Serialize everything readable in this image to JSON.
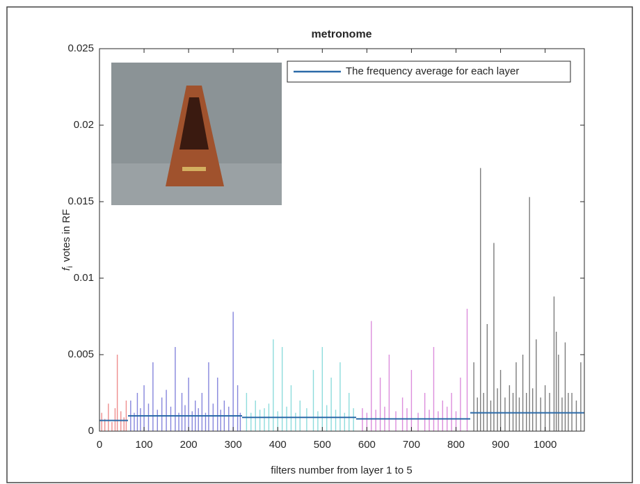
{
  "chart_data": {
    "type": "stem",
    "title": "metronome",
    "xlabel": "filters number from layer 1 to 5",
    "ylabel": {
      "symbol": "f",
      "subscript": "i",
      "text": "votes in RF"
    },
    "xlim": [
      0,
      1088
    ],
    "ylim": [
      0,
      0.025
    ],
    "xticks": [
      0,
      100,
      200,
      300,
      400,
      500,
      600,
      700,
      800,
      900,
      1000
    ],
    "yticks": [
      0,
      0.005,
      0.01,
      0.015,
      0.02,
      0.025
    ],
    "layers": [
      {
        "color": "#e03030",
        "start": 0,
        "end": 64,
        "x": [
          5,
          12,
          20,
          28,
          35,
          40,
          48,
          55,
          60
        ],
        "values": [
          0.0012,
          0.0008,
          0.0018,
          0.0006,
          0.0015,
          0.005,
          0.0013,
          0.0009,
          0.002
        ]
      },
      {
        "color": "#2020c0",
        "start": 64,
        "end": 320,
        "x": [
          70,
          78,
          85,
          92,
          100,
          110,
          120,
          130,
          140,
          150,
          160,
          170,
          178,
          185,
          192,
          200,
          208,
          215,
          222,
          230,
          238,
          245,
          255,
          265,
          272,
          280,
          290,
          300,
          310,
          316
        ],
        "values": [
          0.002,
          0.0012,
          0.0025,
          0.0015,
          0.003,
          0.0018,
          0.0045,
          0.0014,
          0.0022,
          0.0027,
          0.0016,
          0.0055,
          0.0012,
          0.0025,
          0.0017,
          0.0035,
          0.0013,
          0.002,
          0.0015,
          0.0025,
          0.0012,
          0.0045,
          0.0018,
          0.0035,
          0.0014,
          0.002,
          0.0016,
          0.0078,
          0.003,
          0.0012
        ]
      },
      {
        "color": "#30c0c0",
        "start": 320,
        "end": 576,
        "x": [
          330,
          340,
          350,
          360,
          370,
          380,
          390,
          400,
          410,
          420,
          430,
          440,
          450,
          465,
          480,
          490,
          500,
          510,
          520,
          530,
          540,
          550,
          560,
          570
        ],
        "values": [
          0.0025,
          0.0012,
          0.002,
          0.0014,
          0.0015,
          0.0018,
          0.006,
          0.0013,
          0.0055,
          0.0016,
          0.003,
          0.0012,
          0.002,
          0.0015,
          0.004,
          0.0013,
          0.0055,
          0.0017,
          0.0035,
          0.0014,
          0.0045,
          0.0012,
          0.0025,
          0.0015
        ]
      },
      {
        "color": "#c030c0",
        "start": 576,
        "end": 832,
        "x": [
          590,
          600,
          610,
          620,
          630,
          640,
          650,
          665,
          680,
          690,
          700,
          715,
          730,
          740,
          750,
          760,
          770,
          780,
          790,
          800,
          810,
          825
        ],
        "values": [
          0.0015,
          0.0012,
          0.0072,
          0.0014,
          0.0035,
          0.0016,
          0.005,
          0.0013,
          0.0022,
          0.0015,
          0.004,
          0.0012,
          0.0025,
          0.0014,
          0.0055,
          0.0013,
          0.002,
          0.0016,
          0.0025,
          0.0013,
          0.0035,
          0.008
        ]
      },
      {
        "color": "#101010",
        "start": 832,
        "end": 1088,
        "x": [
          840,
          848,
          855,
          862,
          870,
          878,
          885,
          893,
          900,
          910,
          920,
          928,
          935,
          942,
          950,
          958,
          965,
          972,
          980,
          990,
          1000,
          1010,
          1020,
          1025,
          1030,
          1038,
          1045,
          1052,
          1060,
          1070,
          1080
        ],
        "values": [
          0.0045,
          0.0022,
          0.0172,
          0.0025,
          0.007,
          0.002,
          0.0123,
          0.0028,
          0.004,
          0.0022,
          0.003,
          0.0025,
          0.0045,
          0.0022,
          0.005,
          0.0025,
          0.0153,
          0.0028,
          0.006,
          0.0022,
          0.003,
          0.0025,
          0.0088,
          0.0065,
          0.005,
          0.0022,
          0.0058,
          0.0025,
          0.0025,
          0.002,
          0.0045
        ]
      }
    ],
    "average": {
      "name": "The frequency average for each layer",
      "color": "#2b6aa8",
      "values": [
        0.0007,
        0.001,
        0.0009,
        0.0008,
        0.0012
      ]
    }
  }
}
